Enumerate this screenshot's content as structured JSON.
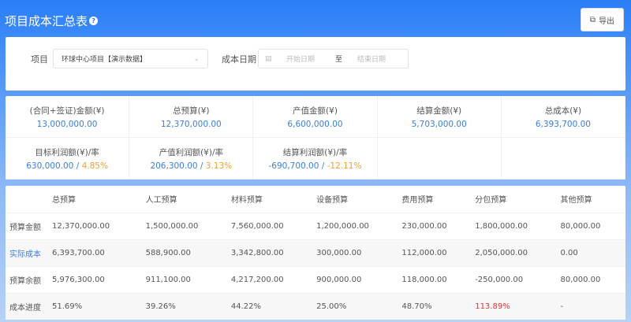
{
  "header": {
    "title": "项目成本汇总表",
    "help_icon": "question-circle-icon",
    "export_label": "导出",
    "export_icon": "export-icon"
  },
  "filter": {
    "project_label": "项目",
    "project_value": "环球中心项目【演示数据】",
    "date_label": "成本日期",
    "start_placeholder": "开始日期",
    "separator": "至",
    "end_placeholder": "结束日期"
  },
  "stats": [
    {
      "label": "(合同+签证)金额(¥)",
      "value": "13,000,000.00"
    },
    {
      "label": "总预算(¥)",
      "value": "12,370,000.00"
    },
    {
      "label": "产值金额(¥)",
      "value": "6,600,000.00"
    },
    {
      "label": "结算金额(¥)",
      "value": "5,703,000.00"
    },
    {
      "label": "总成本(¥)",
      "value": "6,393,700.00"
    },
    {
      "label": "目标利润额(¥)/率",
      "value": "630,000.00",
      "rate": "4.85%"
    },
    {
      "label": "产值利润额(¥)/率",
      "value": "206,300.00",
      "rate": "3.13%"
    },
    {
      "label": "结算利润额(¥)/率",
      "value": "-690,700.00",
      "rate": "-12.11%"
    }
  ],
  "table": {
    "headers": [
      "",
      "总预算",
      "人工预算",
      "材料预算",
      "设备预算",
      "费用预算",
      "分包预算",
      "其他预算"
    ],
    "rows": [
      [
        "预算金额",
        "12,370,000.00",
        "1,500,000.00",
        "7,560,000.00",
        "1,200,000.00",
        "230,000.00",
        "1,800,000.00",
        "80,000.00"
      ],
      [
        "实际成本",
        "6,393,700.00",
        "588,900.00",
        "3,342,800.00",
        "300,000.00",
        "112,000.00",
        "2,050,000.00",
        "0.00"
      ],
      [
        "预算余额",
        "5,976,300.00",
        "911,100.00",
        "4,217,200.00",
        "900,000.00",
        "118,000.00",
        "-250,000.00",
        "80,000.00"
      ],
      [
        "成本进度",
        "51.69%",
        "39.26%",
        "44.22%",
        "25.00%",
        "48.70%",
        "113.89%",
        "-"
      ]
    ]
  },
  "colors": {
    "primary": "#2a7ef8",
    "link": "#3a7fe0",
    "rate": "#f0a030",
    "over": "#e83030"
  }
}
